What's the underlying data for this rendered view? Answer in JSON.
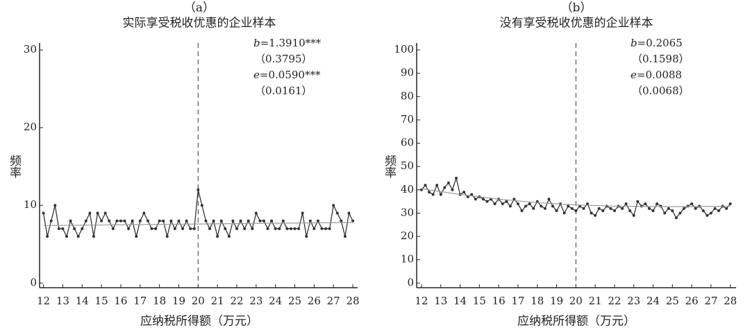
{
  "chart_data": [
    {
      "type": "line",
      "panel": "（a）",
      "title": "实际享受税收优惠的企业样本",
      "xlabel": "应纳税所得额（万元）",
      "ylabel": "频率",
      "annotations": [
        "b=1.3910***",
        "（0.3795）",
        "e=0.0590***",
        "（0.0161）"
      ],
      "x": [
        12,
        12.2,
        12.4,
        12.6,
        12.8,
        13,
        13.2,
        13.4,
        13.6,
        13.8,
        14,
        14.2,
        14.4,
        14.6,
        14.8,
        15,
        15.2,
        15.4,
        15.6,
        15.8,
        16,
        16.2,
        16.4,
        16.6,
        16.8,
        17,
        17.2,
        17.4,
        17.6,
        17.8,
        18,
        18.2,
        18.4,
        18.6,
        18.8,
        19,
        19.2,
        19.4,
        19.6,
        19.8,
        20,
        20.2,
        20.4,
        20.6,
        20.8,
        21,
        21.2,
        21.4,
        21.6,
        21.8,
        22,
        22.2,
        22.4,
        22.6,
        22.8,
        23,
        23.2,
        23.4,
        23.6,
        23.8,
        24,
        24.2,
        24.4,
        24.6,
        24.8,
        25,
        25.2,
        25.4,
        25.6,
        25.8,
        26,
        26.2,
        26.4,
        26.6,
        26.8,
        27,
        27.2,
        27.4,
        27.6,
        27.8,
        28
      ],
      "series": [
        {
          "color": "#333333",
          "values": [
            9,
            6,
            8,
            10,
            7,
            7,
            6,
            8,
            7,
            6,
            7,
            8,
            9,
            6,
            9,
            8,
            9,
            8,
            7,
            8,
            8,
            8,
            7,
            8,
            6,
            8,
            9,
            8,
            7,
            7,
            8,
            8,
            6,
            8,
            7,
            8,
            7,
            8,
            7,
            7,
            12,
            10,
            8,
            7,
            8,
            6,
            8,
            7,
            6,
            8,
            7,
            8,
            7,
            8,
            7,
            9,
            8,
            8,
            7,
            8,
            7,
            7,
            8,
            7,
            7,
            7,
            7,
            9,
            6,
            8,
            7,
            8,
            7,
            7,
            7,
            10,
            9,
            8,
            6,
            9,
            8
          ]
        },
        {
          "color": "#9a9a9a",
          "x": [
            12,
            16,
            20,
            24,
            28
          ],
          "values": [
            7.4,
            7.5,
            7.6,
            7.7,
            7.8
          ]
        }
      ],
      "vline": 20,
      "xlim": [
        11.8,
        28.25
      ],
      "ylim": [
        -0.6,
        30.9
      ],
      "xticks": [
        12,
        13,
        14,
        15,
        16,
        17,
        18,
        19,
        20,
        21,
        22,
        23,
        24,
        25,
        26,
        27,
        28
      ],
      "yticks": [
        0,
        10,
        20,
        30
      ]
    },
    {
      "type": "line",
      "panel": "（b）",
      "title": "没有享受税收优惠的企业样本",
      "xlabel": "应纳税所得额（万元）",
      "ylabel": "频率",
      "annotations": [
        "b=0.2065",
        "（0.1598）",
        "e=0.0088",
        "（0.0068）"
      ],
      "x": [
        12,
        12.2,
        12.4,
        12.6,
        12.8,
        13,
        13.2,
        13.4,
        13.6,
        13.8,
        14,
        14.2,
        14.4,
        14.6,
        14.8,
        15,
        15.2,
        15.4,
        15.6,
        15.8,
        16,
        16.2,
        16.4,
        16.6,
        16.8,
        17,
        17.2,
        17.4,
        17.6,
        17.8,
        18,
        18.2,
        18.4,
        18.6,
        18.8,
        19,
        19.2,
        19.4,
        19.6,
        19.8,
        20,
        20.2,
        20.4,
        20.6,
        20.8,
        21,
        21.2,
        21.4,
        21.6,
        21.8,
        22,
        22.2,
        22.4,
        22.6,
        22.8,
        23,
        23.2,
        23.4,
        23.6,
        23.8,
        24,
        24.2,
        24.4,
        24.6,
        24.8,
        25,
        25.2,
        25.4,
        25.6,
        25.8,
        26,
        26.2,
        26.4,
        26.6,
        26.8,
        27,
        27.2,
        27.4,
        27.6,
        27.8,
        28
      ],
      "series": [
        {
          "color": "#333333",
          "values": [
            40,
            42,
            39,
            38,
            42,
            38,
            41,
            43,
            40,
            45,
            38,
            39,
            37,
            38,
            36,
            37,
            36,
            35,
            36,
            34,
            36,
            34,
            35,
            33,
            36,
            34,
            31,
            33,
            34,
            32,
            35,
            33,
            32,
            36,
            33,
            31,
            34,
            30,
            33,
            32,
            31,
            33,
            32,
            34,
            30,
            29,
            32,
            31,
            33,
            32,
            31,
            33,
            32,
            34,
            31,
            29,
            35,
            33,
            34,
            32,
            31,
            34,
            33,
            30,
            32,
            31,
            28,
            30,
            32,
            33,
            34,
            32,
            33,
            31,
            29,
            30,
            32,
            31,
            33,
            32,
            34
          ]
        },
        {
          "color": "#9a9a9a",
          "x": [
            12,
            14,
            16,
            18,
            20,
            22,
            24,
            26,
            28
          ],
          "values": [
            40.5,
            38,
            36,
            34.5,
            33.5,
            33,
            32.8,
            32.8,
            33
          ]
        }
      ],
      "vline": 20,
      "xlim": [
        11.75,
        28.3
      ],
      "ylim": [
        -2,
        103
      ],
      "xticks": [
        12,
        13,
        14,
        15,
        16,
        17,
        18,
        19,
        20,
        21,
        22,
        23,
        24,
        25,
        26,
        27,
        28
      ],
      "yticks": [
        0,
        10,
        20,
        30,
        40,
        50,
        60,
        70,
        80,
        90,
        100
      ]
    }
  ]
}
